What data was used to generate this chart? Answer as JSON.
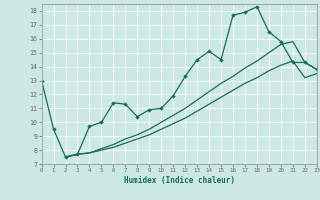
{
  "xlabel": "Humidex (Indice chaleur)",
  "background_color": "#cce8e5",
  "grid_color": "#b0d8d4",
  "line_color": "#1a6b5a",
  "xlim": [
    0,
    23
  ],
  "ylim": [
    7,
    18.5
  ],
  "xticks": [
    0,
    1,
    2,
    3,
    4,
    5,
    6,
    7,
    8,
    9,
    10,
    11,
    12,
    13,
    14,
    15,
    16,
    17,
    18,
    19,
    20,
    21,
    22,
    23
  ],
  "yticks": [
    7,
    8,
    9,
    10,
    11,
    12,
    13,
    14,
    15,
    16,
    17,
    18
  ],
  "line1_x": [
    0,
    1,
    2,
    3,
    4,
    5,
    6,
    7,
    8,
    9,
    10,
    11,
    12,
    13,
    14,
    15,
    16,
    17,
    18,
    19,
    20,
    21,
    22,
    23
  ],
  "line1_y": [
    13.0,
    9.5,
    7.5,
    7.7,
    9.7,
    10.0,
    11.4,
    11.3,
    10.4,
    10.9,
    11.0,
    11.9,
    13.3,
    14.5,
    15.1,
    14.5,
    17.7,
    17.9,
    18.3,
    16.5,
    15.8,
    14.3,
    14.3,
    13.8
  ],
  "line2_x": [
    2,
    3,
    4,
    5,
    6,
    7,
    8,
    9,
    10,
    11,
    12,
    13,
    14,
    15,
    16,
    17,
    18,
    19,
    20,
    21,
    22,
    23
  ],
  "line2_y": [
    7.5,
    7.7,
    7.8,
    8.1,
    8.4,
    8.8,
    9.1,
    9.5,
    10.0,
    10.5,
    11.0,
    11.6,
    12.2,
    12.8,
    13.3,
    13.9,
    14.4,
    15.0,
    15.6,
    15.8,
    14.3,
    13.8
  ],
  "line3_x": [
    2,
    3,
    4,
    5,
    6,
    7,
    8,
    9,
    10,
    11,
    12,
    13,
    14,
    15,
    16,
    17,
    18,
    19,
    20,
    21,
    22,
    23
  ],
  "line3_y": [
    7.5,
    7.7,
    7.8,
    8.0,
    8.2,
    8.5,
    8.8,
    9.1,
    9.5,
    9.9,
    10.3,
    10.8,
    11.3,
    11.8,
    12.3,
    12.8,
    13.2,
    13.7,
    14.1,
    14.4,
    13.2,
    13.5
  ]
}
